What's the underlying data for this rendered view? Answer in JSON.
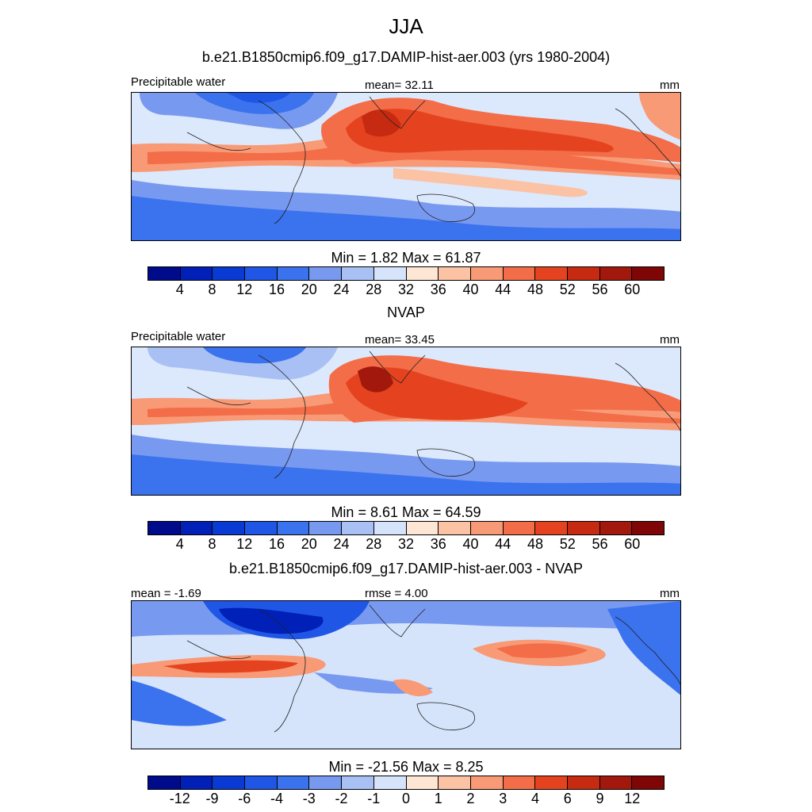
{
  "title": "JJA",
  "panels": [
    {
      "id": "model",
      "subtitle": "b.e21.B1850cmip6.f09_g17.DAMIP-hist-aer.003 (yrs 1980-2004)",
      "left_label": "Precipitable water",
      "center_label": "mean=  32.11",
      "right_label": "mm",
      "minmax": "Min =    1.82 Max =  61.87",
      "colorbar_ticks": [
        "4",
        "8",
        "12",
        "16",
        "20",
        "24",
        "28",
        "32",
        "36",
        "40",
        "44",
        "48",
        "52",
        "56",
        "60"
      ]
    },
    {
      "id": "obs",
      "subtitle": "NVAP",
      "left_label": "Precipitable water",
      "center_label": "mean=  33.45",
      "right_label": "mm",
      "minmax": "Min =    8.61 Max =  64.59",
      "colorbar_ticks": [
        "4",
        "8",
        "12",
        "16",
        "20",
        "24",
        "28",
        "32",
        "36",
        "40",
        "44",
        "48",
        "52",
        "56",
        "60"
      ]
    },
    {
      "id": "diff",
      "subtitle": "b.e21.B1850cmip6.f09_g17.DAMIP-hist-aer.003 - NVAP",
      "left_label": "mean =  -1.69",
      "center_label": "rmse =    4.00",
      "right_label": "mm",
      "minmax": "Min = -21.56 Max =    8.25",
      "colorbar_ticks": [
        "-12",
        "-9",
        "-6",
        "-4",
        "-3",
        "-2",
        "-1",
        "0",
        "1",
        "2",
        "3",
        "4",
        "6",
        "9",
        "12"
      ]
    }
  ],
  "palette": [
    "#000b8c",
    "#0020b8",
    "#0a3ad4",
    "#1f56e6",
    "#3b72ee",
    "#7899f0",
    "#a9c0f5",
    "#d6e4fb",
    "#fde6d4",
    "#fbc2a4",
    "#f89a76",
    "#f26d48",
    "#e5431f",
    "#c62a10",
    "#a3180c",
    "#7f0606"
  ]
}
